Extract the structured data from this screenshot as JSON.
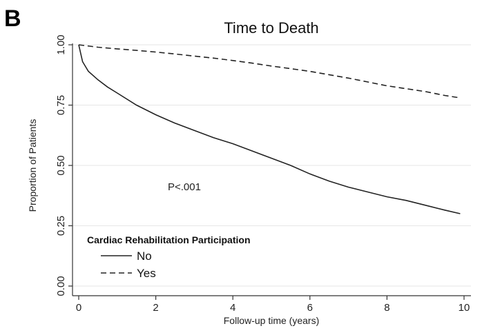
{
  "panel_label": "B",
  "chart_data": {
    "type": "line",
    "title": "Time to Death",
    "xlabel": "Follow-up time (years)",
    "ylabel": "Proportion of Patients",
    "xlim": [
      0,
      10
    ],
    "ylim": [
      0,
      1
    ],
    "x_ticks": [
      "0",
      "2",
      "4",
      "6",
      "8",
      "10"
    ],
    "y_ticks": [
      "0.00",
      "0.25",
      "0.50",
      "0.75",
      "1.00"
    ],
    "grid": "horizontal",
    "annotation": "P<.001",
    "legend": {
      "title": "Cardiac Rehabilitation Participation",
      "placement": "bottom-left",
      "entries": [
        "No",
        "Yes"
      ]
    },
    "series": [
      {
        "name": "No",
        "line_style": "solid",
        "x": [
          0,
          0.1,
          0.25,
          0.5,
          0.75,
          1,
          1.5,
          2,
          2.5,
          3,
          3.5,
          4,
          4.5,
          5,
          5.5,
          6,
          6.5,
          7,
          7.5,
          8,
          8.5,
          9,
          9.5,
          9.9
        ],
        "y": [
          1.0,
          0.93,
          0.89,
          0.855,
          0.825,
          0.8,
          0.75,
          0.71,
          0.675,
          0.645,
          0.615,
          0.59,
          0.56,
          0.53,
          0.5,
          0.465,
          0.435,
          0.41,
          0.39,
          0.37,
          0.355,
          0.335,
          0.315,
          0.3
        ]
      },
      {
        "name": "Yes",
        "line_style": "dashed",
        "x": [
          0,
          0.5,
          1,
          1.5,
          2,
          2.5,
          3,
          3.5,
          4,
          4.5,
          5,
          5.5,
          6,
          6.5,
          7,
          7.5,
          8,
          8.5,
          9,
          9.5,
          9.9
        ],
        "y": [
          1.0,
          0.99,
          0.983,
          0.977,
          0.97,
          0.962,
          0.953,
          0.945,
          0.935,
          0.924,
          0.912,
          0.901,
          0.89,
          0.876,
          0.862,
          0.846,
          0.83,
          0.818,
          0.806,
          0.79,
          0.78
        ]
      }
    ]
  }
}
